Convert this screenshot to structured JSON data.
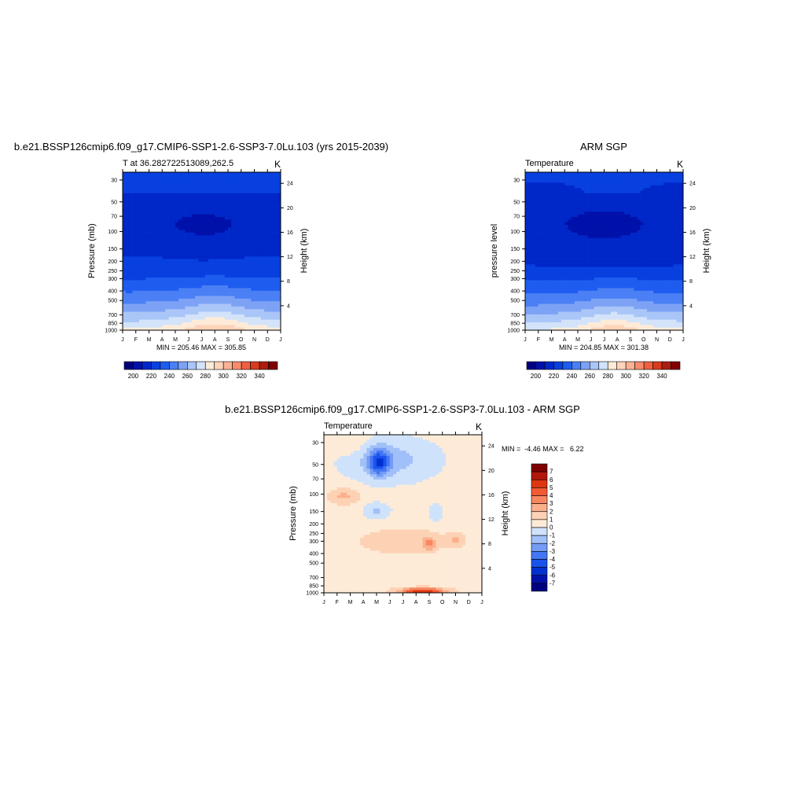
{
  "colors": {
    "abs_scale": [
      "#00007f",
      "#0011aa",
      "#0027c8",
      "#0840e0",
      "#1e5cf0",
      "#4a7ff5",
      "#7da2f5",
      "#aac5f7",
      "#d2e3fa",
      "#fdebd8",
      "#fdd3ba",
      "#fbb294",
      "#f78b6b",
      "#ef5f40",
      "#d83a1d",
      "#ad1e0e",
      "#800000"
    ],
    "diff_scale": [
      "#00007f",
      "#0011aa",
      "#0030d0",
      "#1a53ec",
      "#4576f3",
      "#749cf5",
      "#a1bff8",
      "#cfe2fb",
      "#fdebd8",
      "#fdd2b4",
      "#fbb08c",
      "#f88760",
      "#f25a33",
      "#dd3610",
      "#b2170a",
      "#7f0000"
    ]
  },
  "chart_data": [
    {
      "type": "heatmap",
      "panel": "model",
      "title": "b.e21.BSSP126cmip6.f09_g17.CMIP6-SSP1-2.6-SSP3-7.0Lu.103 (yrs 2015-2039)",
      "subtitle_left": "T at 36.282722513089,262.5",
      "subtitle_right": "K",
      "ylabel": "Pressure (mb)",
      "ylabel_right": "Height (km)",
      "x_ticks": [
        "J",
        "F",
        "M",
        "A",
        "M",
        "J",
        "J",
        "A",
        "S",
        "O",
        "N",
        "D",
        "J"
      ],
      "y_ticks": [
        "30",
        "50",
        "70",
        "100",
        "150",
        "200",
        "250",
        "300",
        "400",
        "500",
        "700",
        "850",
        "1000"
      ],
      "y_ticks_right": [
        "24",
        "20",
        "16",
        "12",
        "8",
        "4"
      ],
      "stats": "MIN = 205.46 MAX = 305.85",
      "min": 205.46,
      "max": 305.85,
      "colorbar_labels": [
        "200",
        "220",
        "240",
        "260",
        "280",
        "300",
        "320",
        "340"
      ],
      "levels": [
        200,
        210,
        220,
        230,
        240,
        250,
        260,
        270,
        280,
        290,
        300,
        310,
        320,
        330,
        340
      ],
      "y_scale": "log",
      "ylim": [
        1000,
        25
      ]
    },
    {
      "type": "heatmap",
      "panel": "obs",
      "title": "ARM SGP",
      "subtitle_left": "Temperature",
      "subtitle_right": "K",
      "ylabel": "pressure level",
      "ylabel_right": "Height (km)",
      "x_ticks": [
        "J",
        "F",
        "M",
        "A",
        "M",
        "J",
        "J",
        "A",
        "S",
        "O",
        "N",
        "D",
        "J"
      ],
      "y_ticks": [
        "30",
        "50",
        "70",
        "100",
        "150",
        "200",
        "250",
        "300",
        "400",
        "500",
        "700",
        "850",
        "1000"
      ],
      "y_ticks_right": [
        "24",
        "20",
        "16",
        "12",
        "8",
        "4"
      ],
      "stats": "MIN = 204.85 MAX = 301.38",
      "min": 204.85,
      "max": 301.38,
      "colorbar_labels": [
        "200",
        "220",
        "240",
        "260",
        "280",
        "300",
        "320",
        "340"
      ],
      "levels": [
        200,
        210,
        220,
        230,
        240,
        250,
        260,
        270,
        280,
        290,
        300,
        310,
        320,
        330,
        340
      ],
      "y_scale": "log",
      "ylim": [
        1000,
        25
      ]
    },
    {
      "type": "heatmap",
      "panel": "difference",
      "title": "b.e21.BSSP126cmip6.f09_g17.CMIP6-SSP1-2.6-SSP3-7.0Lu.103 - ARM SGP",
      "subtitle_left": "Temperature",
      "subtitle_right": "K",
      "ylabel": "Pressure (mb)",
      "ylabel_right": "Height (km)",
      "x_ticks": [
        "J",
        "F",
        "M",
        "A",
        "M",
        "J",
        "J",
        "A",
        "S",
        "O",
        "N",
        "D",
        "J"
      ],
      "y_ticks": [
        "30",
        "50",
        "70",
        "100",
        "150",
        "200",
        "250",
        "300",
        "400",
        "500",
        "700",
        "850",
        "1000"
      ],
      "y_ticks_right": [
        "24",
        "20",
        "16",
        "12",
        "8",
        "4"
      ],
      "stats": "MIN =  -4.46 MAX =   6.22",
      "min": -4.46,
      "max": 6.22,
      "colorbar_labels": [
        "7",
        "6",
        "5",
        "4",
        "3",
        "2",
        "1",
        "0",
        "-1",
        "-2",
        "-3",
        "-4",
        "-5",
        "-6",
        "-7"
      ],
      "levels": [
        -7,
        -6,
        -5,
        -4,
        -3,
        -2,
        -1,
        0,
        1,
        2,
        3,
        4,
        5,
        6,
        7
      ],
      "y_scale": "log",
      "ylim": [
        1000,
        25
      ]
    }
  ]
}
